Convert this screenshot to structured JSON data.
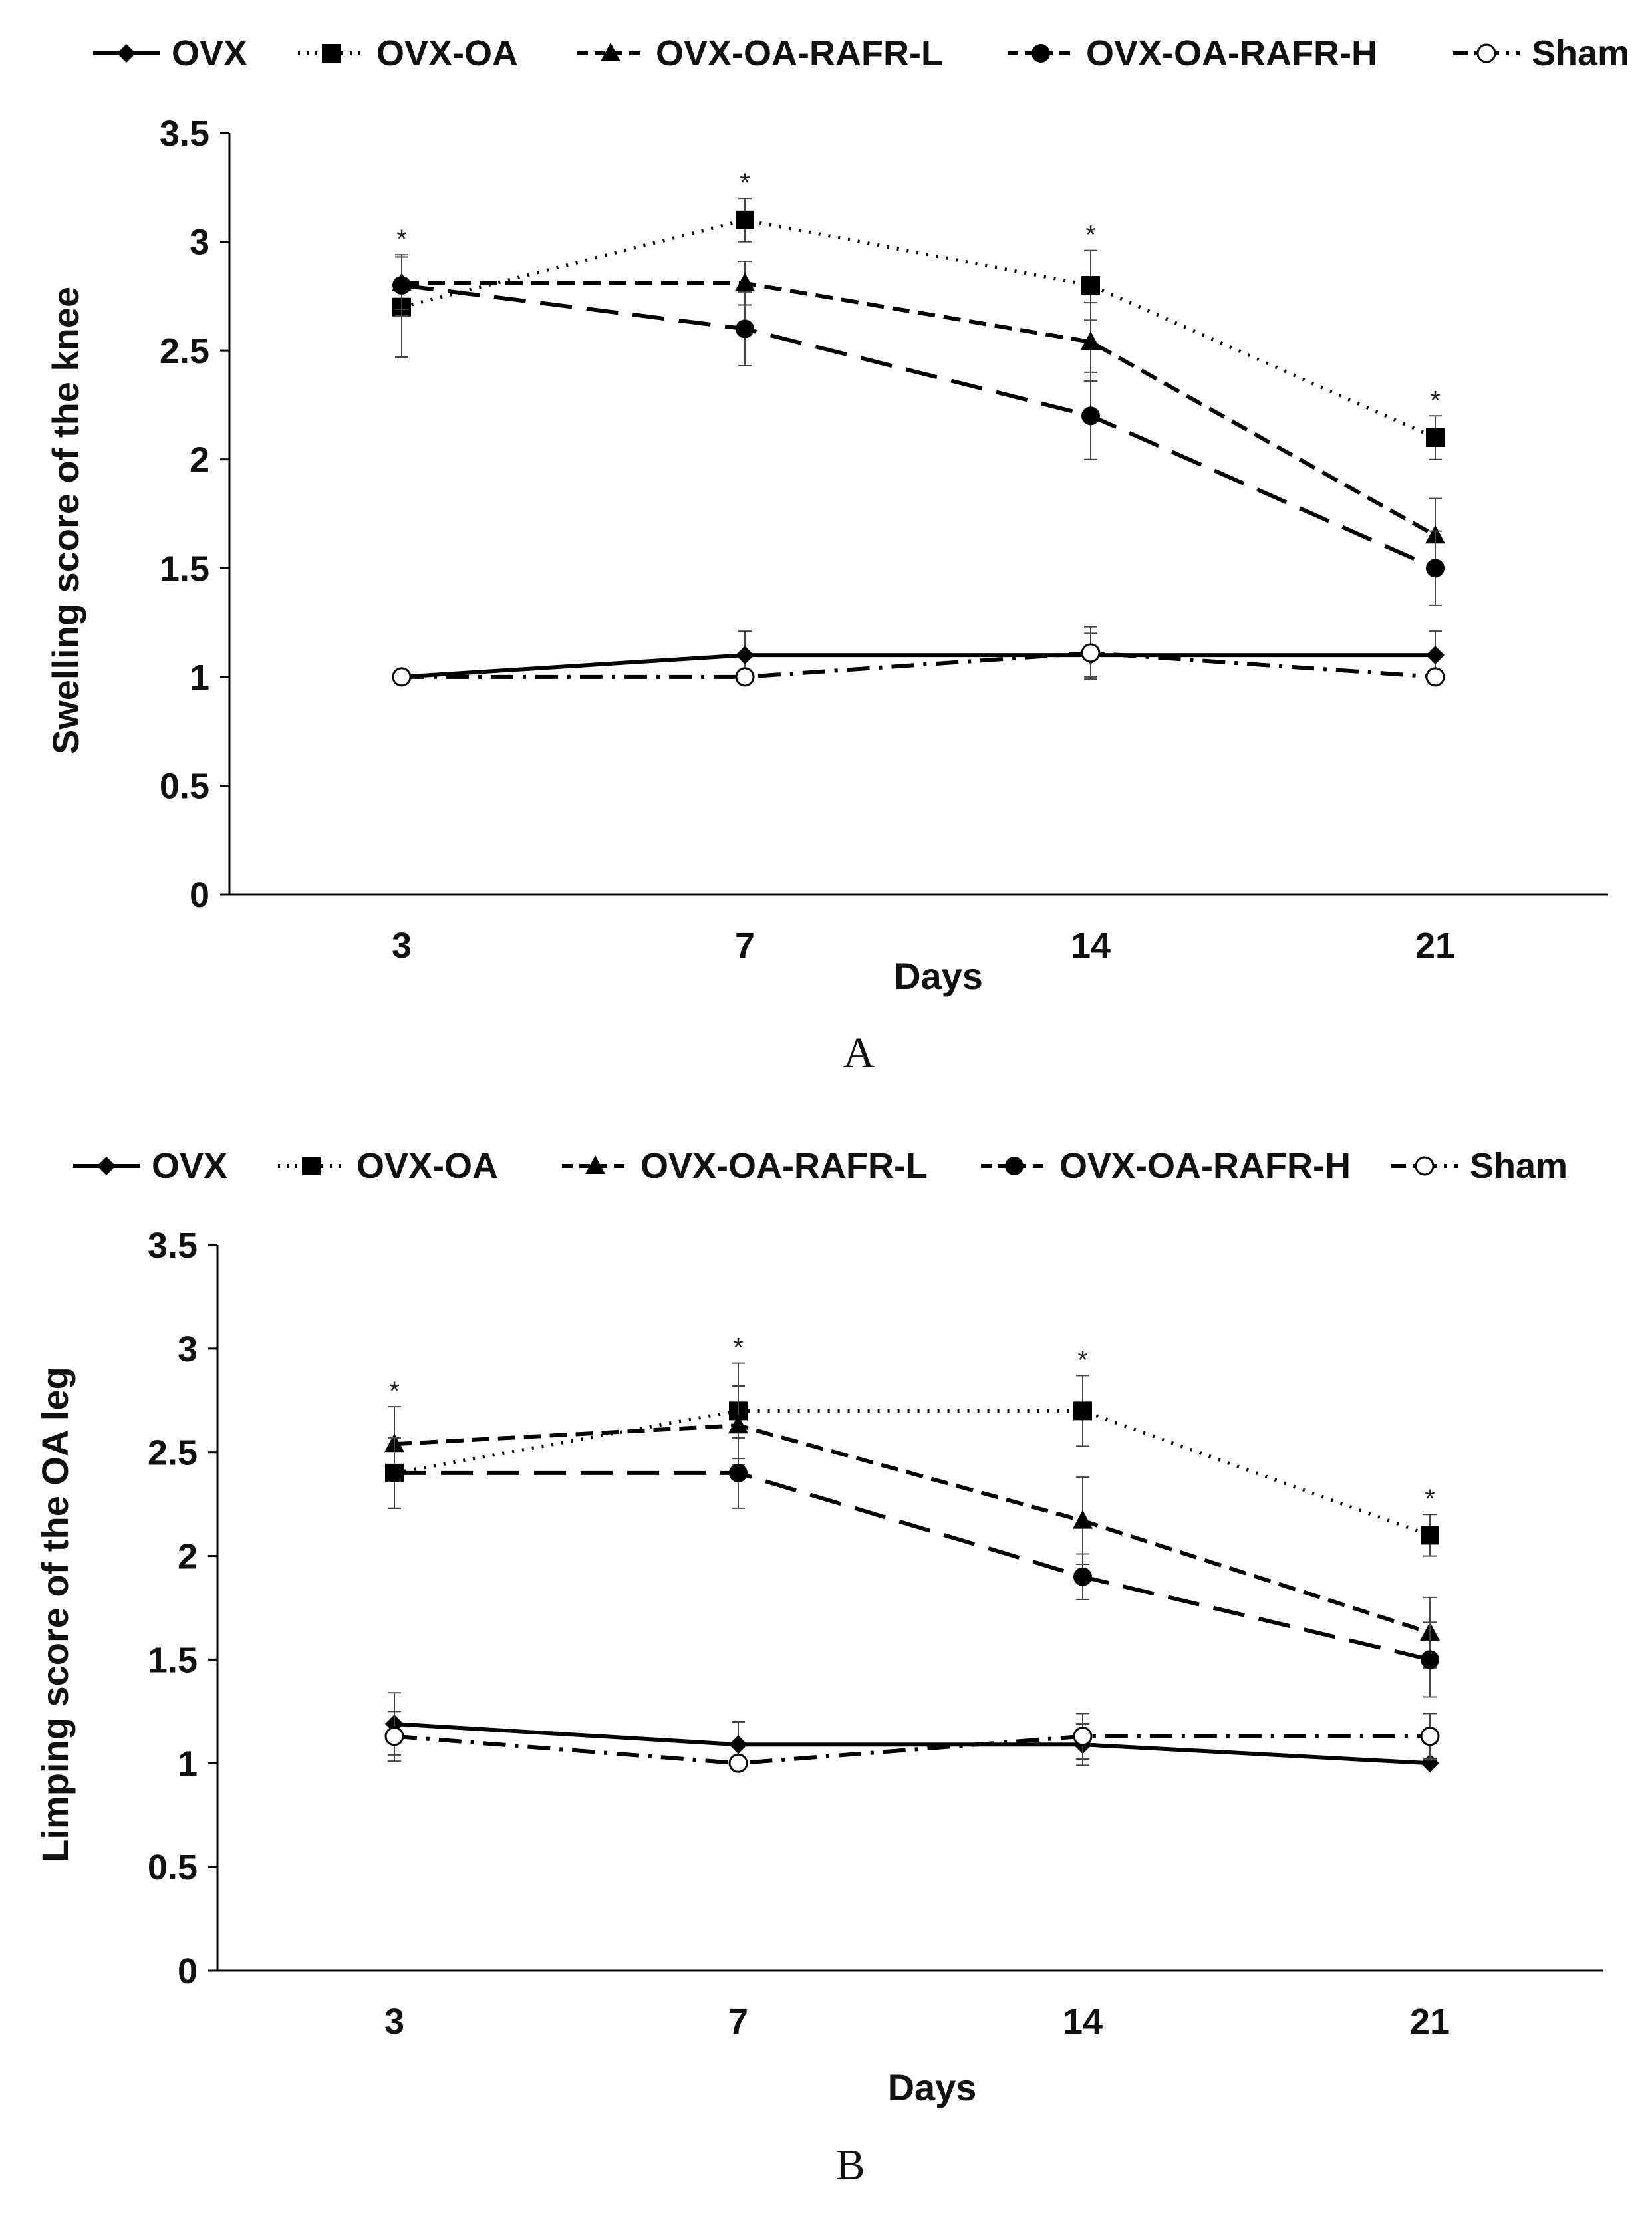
{
  "chart_data": [
    {
      "type": "line",
      "panel_label": "A",
      "categories": [
        "3",
        "7",
        "14",
        "21"
      ],
      "xlabel": "Days",
      "ylabel": "Swelling score of the knee",
      "ylim": [
        0,
        3.5
      ],
      "yticks": [
        "0",
        "0.5",
        "1",
        "1.5",
        "2",
        "2.5",
        "3",
        "3.5"
      ],
      "grid": false,
      "legend_position": "top",
      "significance_marker": "*",
      "significance_at": [
        0,
        1,
        2,
        3
      ],
      "series": [
        {
          "name": "OVX",
          "style": "solid",
          "marker": "diamond",
          "values": [
            1.0,
            1.1,
            1.1,
            1.1
          ],
          "errors": [
            0.0,
            0.11,
            0.1,
            0.11
          ]
        },
        {
          "name": "OVX-OA",
          "style": "dotted",
          "marker": "square",
          "values": [
            2.7,
            3.1,
            2.8,
            2.1
          ],
          "errors": [
            0.23,
            0.1,
            0.16,
            0.1
          ]
        },
        {
          "name": "OVX-OA-RAFR-L",
          "style": "short-dash",
          "marker": "triangle",
          "values": [
            2.81,
            2.81,
            2.54,
            1.65
          ],
          "errors": [
            0.12,
            0.1,
            0.18,
            0.17
          ]
        },
        {
          "name": "OVX-OA-RAFR-H",
          "style": "long-dash",
          "marker": "circle",
          "values": [
            2.8,
            2.6,
            2.2,
            1.5
          ],
          "errors": [
            0.14,
            0.17,
            0.2,
            0.17
          ]
        },
        {
          "name": "Sham",
          "style": "dash-dot",
          "marker": "open-circle",
          "values": [
            1.0,
            1.0,
            1.11,
            1.0
          ],
          "errors": [
            0.0,
            0.0,
            0.12,
            0.0
          ]
        }
      ]
    },
    {
      "type": "line",
      "panel_label": "B",
      "categories": [
        "3",
        "7",
        "14",
        "21"
      ],
      "xlabel": "Days",
      "ylabel": "Limping score of the OA leg",
      "ylim": [
        0,
        3.5
      ],
      "yticks": [
        "0",
        "0.5",
        "1",
        "1.5",
        "2",
        "2.5",
        "3",
        "3.5"
      ],
      "grid": false,
      "legend_position": "top",
      "significance_marker": "*",
      "significance_at": [
        0,
        1,
        2,
        3
      ],
      "series": [
        {
          "name": "OVX",
          "style": "solid",
          "marker": "diamond",
          "values": [
            1.19,
            1.09,
            1.09,
            1.0
          ],
          "errors": [
            0.15,
            0.11,
            0.1,
            0.0
          ]
        },
        {
          "name": "OVX-OA",
          "style": "dotted",
          "marker": "square",
          "values": [
            2.4,
            2.7,
            2.7,
            2.1
          ],
          "errors": [
            0.17,
            0.23,
            0.17,
            0.1
          ]
        },
        {
          "name": "OVX-OA-RAFR-L",
          "style": "short-dash",
          "marker": "triangle",
          "values": [
            2.54,
            2.63,
            2.17,
            1.63
          ],
          "errors": [
            0.18,
            0.19,
            0.21,
            0.17
          ]
        },
        {
          "name": "OVX-OA-RAFR-H",
          "style": "long-dash",
          "marker": "circle",
          "values": [
            2.4,
            2.4,
            1.9,
            1.5
          ],
          "errors": [
            0.17,
            0.17,
            0.11,
            0.18
          ]
        },
        {
          "name": "Sham",
          "style": "dash-dot",
          "marker": "open-circle",
          "values": [
            1.13,
            1.0,
            1.13,
            1.13
          ],
          "errors": [
            0.12,
            0.0,
            0.11,
            0.11
          ]
        }
      ]
    }
  ]
}
